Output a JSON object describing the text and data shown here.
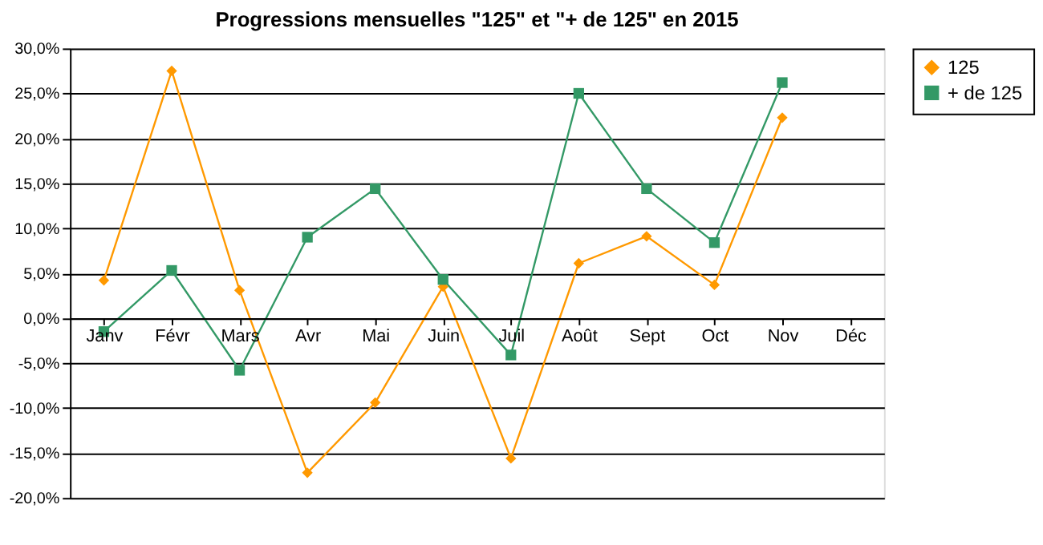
{
  "chart_data": {
    "type": "line",
    "title": "Progressions mensuelles \"125\" et \"+ de 125\" en 2015",
    "categories": [
      "Janv",
      "Févr",
      "Mars",
      "Avr",
      "Mai",
      "Juin",
      "Juil",
      "Août",
      "Sept",
      "Oct",
      "Nov",
      "Déc"
    ],
    "series": [
      {
        "name": "125",
        "color": "#ff9900",
        "marker": "diamond",
        "values": [
          4.2,
          27.5,
          3.1,
          -17.2,
          -9.4,
          3.5,
          -15.6,
          6.1,
          9.1,
          3.7,
          22.3,
          null
        ]
      },
      {
        "name": "+ de 125",
        "color": "#339966",
        "marker": "square",
        "values": [
          -1.5,
          5.3,
          -5.8,
          9.0,
          14.4,
          4.3,
          -4.1,
          25.0,
          14.4,
          8.4,
          26.2,
          null
        ]
      }
    ],
    "ylim": [
      -20,
      30
    ],
    "yticks": [
      {
        "value": -20,
        "label": "-20,0%"
      },
      {
        "value": -15,
        "label": "-15,0%"
      },
      {
        "value": -10,
        "label": "-10,0%"
      },
      {
        "value": -5,
        "label": "-5,0%"
      },
      {
        "value": 0,
        "label": "0,0%"
      },
      {
        "value": 5,
        "label": "5,0%"
      },
      {
        "value": 10,
        "label": "10,0%"
      },
      {
        "value": 15,
        "label": "15,0%"
      },
      {
        "value": 20,
        "label": "20,0%"
      },
      {
        "value": 25,
        "label": "25,0%"
      },
      {
        "value": 30,
        "label": "30,0%"
      }
    ],
    "grid": "y",
    "legend": "right",
    "line_style": "solid"
  }
}
